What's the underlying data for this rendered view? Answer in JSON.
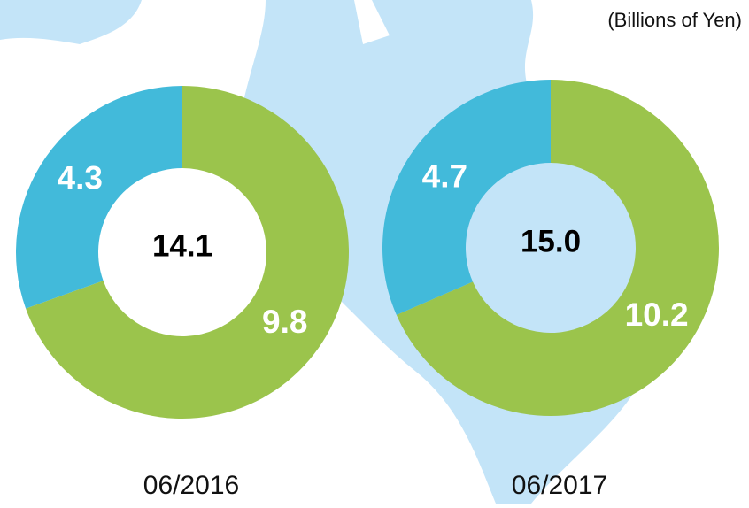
{
  "unit_label": "(Billions of Yen)",
  "chart_data": [
    {
      "type": "donut",
      "title": "06/2016",
      "values": [
        9.8,
        4.3
      ],
      "colors": [
        "#9bc44c",
        "#42bada"
      ],
      "center_label": "14.1"
    },
    {
      "type": "donut",
      "title": "06/2017",
      "values": [
        10.2,
        4.7
      ],
      "colors": [
        "#9bc44c",
        "#42bada"
      ],
      "center_label": "15.0"
    }
  ]
}
